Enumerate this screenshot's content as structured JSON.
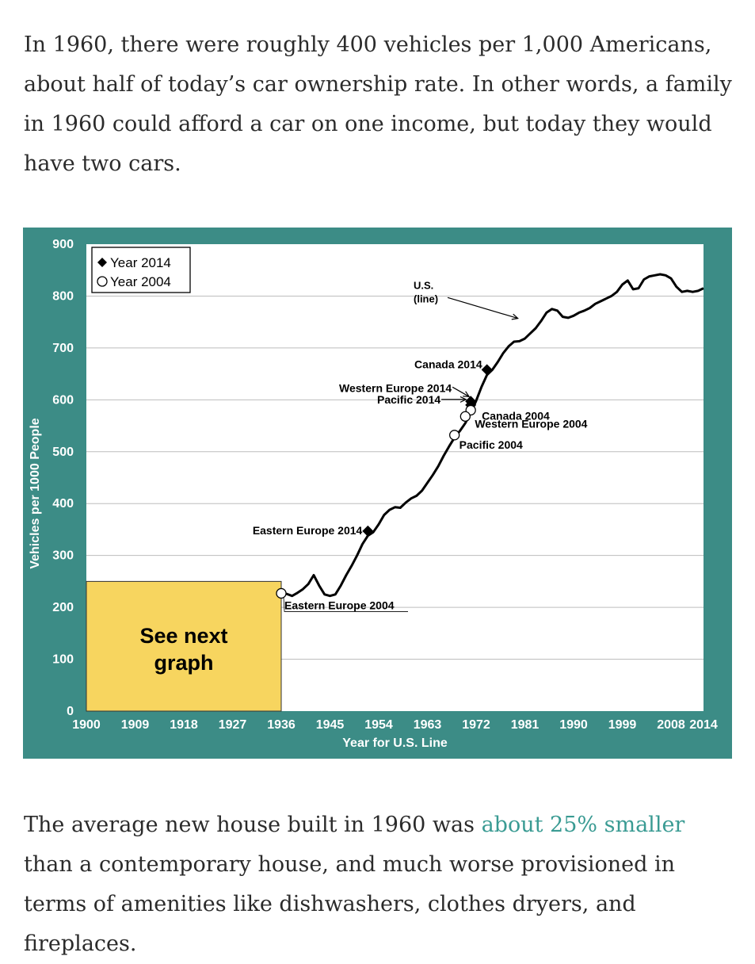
{
  "article": {
    "paragraph1": "In 1960, there were roughly 400 vehicles per 1,000 Americans, about half of today’s car ownership rate. In other words, a family in 1960 could afford a car on one income, but today they would have two cars.",
    "paragraph2_before": "The average new house built in 1960 was ",
    "paragraph2_link": "about 25% smaller",
    "paragraph2_after": " than a contemporary house, and much worse provisioned in terms of amenities like dishwashers, clothes dryers, and fireplaces."
  },
  "colors": {
    "frame": "#3c8c86",
    "plot_bg": "#ffffff",
    "gridline": "#bdbdbd",
    "line": "#000000",
    "box_fill": "#f7d55f",
    "link": "#3a9b93"
  },
  "chart_data": {
    "type": "line",
    "xlabel": "Year for U.S. Line",
    "ylabel": "Vehicles per 1000 People",
    "xlim": [
      1900,
      2014
    ],
    "ylim": [
      0,
      900
    ],
    "x_ticks": [
      1900,
      1909,
      1918,
      1927,
      1936,
      1945,
      1954,
      1963,
      1972,
      1981,
      1990,
      1999,
      2008,
      2014
    ],
    "y_ticks": [
      0,
      100,
      200,
      300,
      400,
      500,
      600,
      700,
      800,
      900
    ],
    "grid": true,
    "legend": {
      "placement": "top-left",
      "entries": [
        {
          "marker": "filled-diamond",
          "label": "Year 2014"
        },
        {
          "marker": "open-circle",
          "label": "Year 2004"
        }
      ]
    },
    "series": [
      {
        "name": "U.S.",
        "x": [
          1936,
          1937,
          1938,
          1939,
          1940,
          1941,
          1942,
          1943,
          1944,
          1945,
          1946,
          1947,
          1948,
          1949,
          1950,
          1951,
          1952,
          1953,
          1954,
          1955,
          1956,
          1957,
          1958,
          1959,
          1960,
          1961,
          1962,
          1963,
          1964,
          1965,
          1966,
          1967,
          1968,
          1969,
          1970,
          1971,
          1972,
          1973,
          1974,
          1975,
          1976,
          1977,
          1978,
          1979,
          1980,
          1981,
          1982,
          1983,
          1984,
          1985,
          1986,
          1987,
          1988,
          1989,
          1990,
          1991,
          1992,
          1993,
          1994,
          1995,
          1996,
          1997,
          1998,
          1999,
          2000,
          2001,
          2002,
          2003,
          2004,
          2005,
          2006,
          2007,
          2008,
          2009,
          2010,
          2011,
          2012,
          2013,
          2014
        ],
        "y": [
          228,
          226,
          222,
          228,
          235,
          245,
          262,
          242,
          225,
          222,
          225,
          242,
          262,
          280,
          300,
          322,
          338,
          345,
          360,
          378,
          388,
          393,
          392,
          402,
          410,
          415,
          425,
          440,
          455,
          472,
          492,
          510,
          527,
          540,
          555,
          575,
          598,
          625,
          648,
          658,
          673,
          690,
          703,
          712,
          713,
          718,
          728,
          738,
          752,
          768,
          775,
          772,
          760,
          758,
          762,
          768,
          772,
          777,
          785,
          790,
          795,
          800,
          808,
          822,
          830,
          813,
          815,
          832,
          838,
          840,
          842,
          840,
          834,
          818,
          808,
          810,
          808,
          810,
          815
        ]
      }
    ],
    "points": [
      {
        "label": "Canada 2014",
        "x": 1974,
        "y": 658,
        "marker": "filled-diamond"
      },
      {
        "label": "Western Europe 2014",
        "x": 1971,
        "y": 597,
        "marker": "filled-diamond"
      },
      {
        "label": "Pacific 2014",
        "x": 1971,
        "y": 590,
        "marker": "filled-diamond"
      },
      {
        "label": "Eastern Europe 2014",
        "x": 1952,
        "y": 347,
        "marker": "filled-diamond"
      },
      {
        "label": "Canada 2004",
        "x": 1971,
        "y": 580,
        "marker": "open-circle"
      },
      {
        "label": "Western Europe 2004",
        "x": 1970,
        "y": 568,
        "marker": "open-circle"
      },
      {
        "label": "Pacific 2004",
        "x": 1968,
        "y": 532,
        "marker": "open-circle"
      },
      {
        "label": "Eastern Europe 2004",
        "x": 1936,
        "y": 227,
        "marker": "open-circle"
      }
    ],
    "annotations": [
      {
        "text": "U.S.\n(line)",
        "points_to": "U.S. line near 1980"
      },
      {
        "text": "See next\ngraph",
        "x_range": [
          1900,
          1936
        ],
        "y_range": [
          0,
          250
        ]
      }
    ]
  }
}
